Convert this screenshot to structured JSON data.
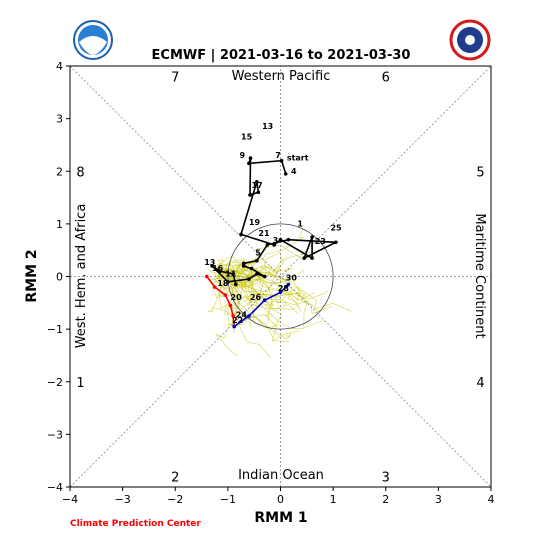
{
  "chart_data": {
    "type": "line",
    "title": "ECMWF | 2021-03-16 to 2021-03-30",
    "xlabel": "RMM 1",
    "ylabel": "RMM 2",
    "xlim": [
      -4,
      4
    ],
    "ylim": [
      -4,
      4
    ],
    "xticks": [
      "−4",
      "−3",
      "−2",
      "−1",
      "0",
      "1",
      "2",
      "3",
      "4"
    ],
    "yticks": [
      "−4",
      "−3",
      "−2",
      "−1",
      "0",
      "1",
      "2",
      "3",
      "4"
    ],
    "grid": false,
    "unit_circle_radius": 1,
    "regions": {
      "top": "Western Pacific",
      "bottom": "Indian Ocean",
      "left": "West. Hem. and Africa",
      "right": "Maritime Continent"
    },
    "phases": [
      {
        "label": "1",
        "x": -3.8,
        "y": -2.0
      },
      {
        "label": "2",
        "x": -2.0,
        "y": -3.8
      },
      {
        "label": "3",
        "x": 2.0,
        "y": -3.8
      },
      {
        "label": "4",
        "x": 3.8,
        "y": -2.0
      },
      {
        "label": "5",
        "x": 3.8,
        "y": 2.0
      },
      {
        "label": "6",
        "x": 2.0,
        "y": 3.8
      },
      {
        "label": "7",
        "x": -2.0,
        "y": 3.8
      },
      {
        "label": "8",
        "x": -3.8,
        "y": 2.0
      }
    ],
    "series": [
      {
        "color": "#000000",
        "x": [
          0.1,
          0.02,
          -0.6,
          -0.57,
          -0.58,
          -0.42,
          -0.45,
          -0.75,
          -0.12,
          0.0,
          0.6,
          0.6,
          0.45,
          1.05,
          0.15,
          -0.25,
          -0.45,
          -0.7,
          -0.7,
          -0.55,
          -0.3,
          -0.45,
          -0.6,
          -1.0,
          -1.3,
          -1.15,
          -0.9,
          -0.85
        ],
        "y": [
          1.95,
          2.2,
          2.15,
          2.25,
          1.55,
          1.6,
          1.8,
          0.8,
          0.6,
          0.7,
          0.35,
          0.75,
          0.35,
          0.65,
          0.7,
          0.6,
          0.3,
          0.25,
          0.2,
          0.15,
          0.0,
          0.05,
          -0.05,
          -0.1,
          0.2,
          0.1,
          0.05,
          -0.15
        ],
        "labels": [
          {
            "text": "start",
            "x": 0.12,
            "y": 2.2
          },
          {
            "text": "1",
            "x": 0.32,
            "y": 0.95
          },
          {
            "text": "3",
            "x": -0.15,
            "y": 0.64
          },
          {
            "text": "4",
            "x": 0.2,
            "y": 1.95
          },
          {
            "text": "5",
            "x": -0.48,
            "y": 0.4
          },
          {
            "text": "7",
            "x": -0.1,
            "y": 2.25
          },
          {
            "text": "9",
            "x": -0.78,
            "y": 2.25
          },
          {
            "text": "11",
            "x": -1.05,
            "y": 0.0
          },
          {
            "text": "13",
            "x": -0.35,
            "y": 2.8
          },
          {
            "text": "13",
            "x": -1.45,
            "y": 0.22
          },
          {
            "text": "15",
            "x": -0.75,
            "y": 2.6
          },
          {
            "text": "16",
            "x": -1.3,
            "y": 0.1
          },
          {
            "text": "17",
            "x": -0.55,
            "y": 1.68
          },
          {
            "text": "19",
            "x": -0.6,
            "y": 0.98
          },
          {
            "text": "21",
            "x": -0.42,
            "y": 0.77
          },
          {
            "text": "23",
            "x": 0.65,
            "y": 0.62
          },
          {
            "text": "25",
            "x": 0.95,
            "y": 0.87
          }
        ]
      },
      {
        "color": "#ff0000",
        "x": [
          -1.4,
          -1.25,
          -1.05,
          -0.95,
          -0.9,
          -0.88
        ],
        "y": [
          0.0,
          -0.2,
          -0.35,
          -0.55,
          -0.75,
          -0.95
        ],
        "labels": [
          {
            "text": "18",
            "x": -1.2,
            "y": -0.18
          },
          {
            "text": "20",
            "x": -0.95,
            "y": -0.45
          },
          {
            "text": "22",
            "x": -0.92,
            "y": -0.88
          },
          {
            "text": "24",
            "x": -0.85,
            "y": -0.78
          }
        ]
      },
      {
        "color": "#0000cc",
        "x": [
          -0.88,
          -0.6,
          -0.3,
          0.0,
          0.15
        ],
        "y": [
          -0.95,
          -0.75,
          -0.45,
          -0.3,
          -0.15
        ],
        "labels": [
          {
            "text": "26",
            "x": -0.58,
            "y": -0.45
          },
          {
            "text": "28",
            "x": -0.05,
            "y": -0.28
          },
          {
            "text": "30",
            "x": 0.1,
            "y": -0.08
          }
        ]
      }
    ]
  },
  "footer": {
    "credit": "Climate Prediction Center"
  },
  "logos": {
    "left": "noaa-logo",
    "right": "nws-logo",
    "left_color": "#1a5fb4",
    "right_color": "#d01c1c"
  }
}
